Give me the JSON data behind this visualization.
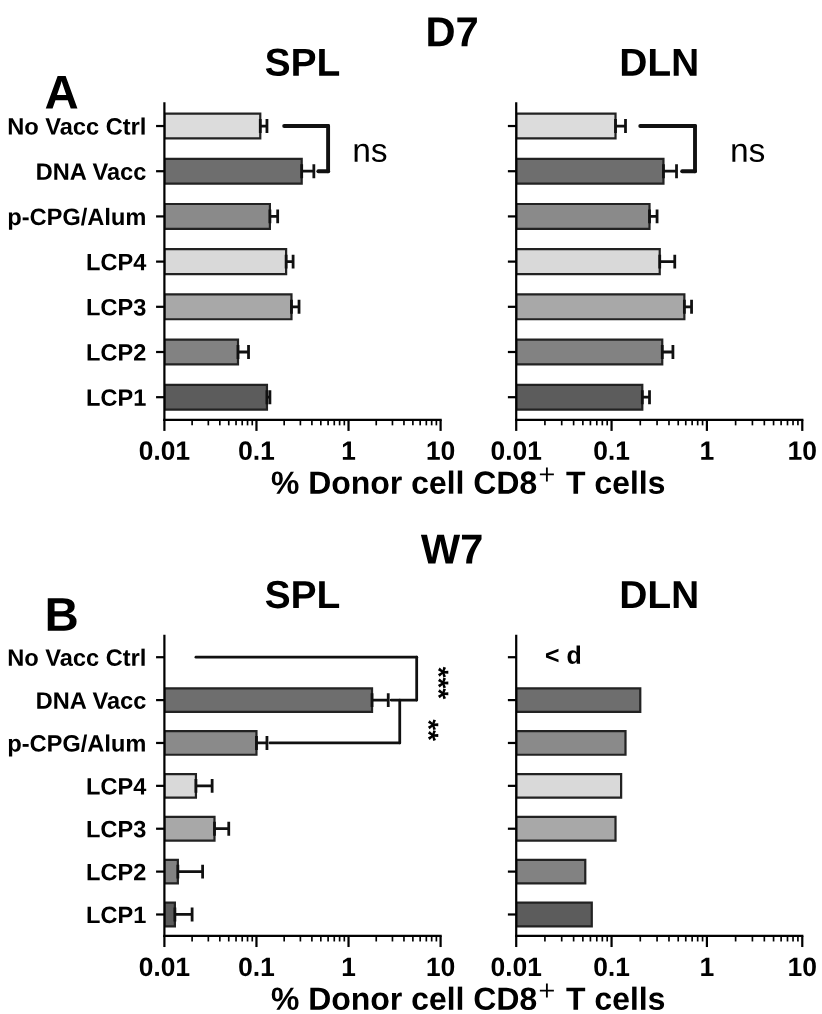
{
  "chart_data": [
    {
      "type": "bar",
      "orientation": "horizontal",
      "title": "SPL",
      "xlabel": "% Donor cell CD8$^{+}$ T cells",
      "log": "x",
      "categories": [
        "No Vacc Ctrl",
        "DNA Vacc",
        "p-CPG/Alum",
        "LCP4",
        "LCP3",
        "LCP2",
        "LCP1"
      ],
      "values": [
        0.11,
        0.31,
        0.14,
        0.21,
        0.24,
        0.063,
        0.13
      ],
      "errors": [
        [
          0.11,
          0.13
        ],
        [
          0.31,
          0.42
        ],
        [
          0.14,
          0.17
        ],
        [
          0.21,
          0.25
        ],
        [
          0.24,
          0.29
        ],
        [
          0.063,
          0.082
        ],
        [
          0.13,
          0.14
        ]
      ],
      "colors": [
        "#dcdcdc",
        "#6e6e6e",
        "#8a8a8a",
        "#d9d9d9",
        "#a8a8a8",
        "#828282",
        "#5c5c5c"
      ],
      "xlim": [
        0.01,
        10
      ],
      "xticks": [
        0.01,
        0.1,
        1,
        10
      ],
      "annotations": [
        "D7",
        "A",
        "ns"
      ]
    },
    {
      "type": "bar",
      "orientation": "horizontal",
      "title": "DLN",
      "log": "x",
      "tick_labels": "x",
      "categories": [
        null,
        null,
        null,
        null,
        null,
        null,
        null
      ],
      "values": [
        0.11,
        0.35,
        0.25,
        0.32,
        0.58,
        0.34,
        0.21
      ],
      "errors": [
        [
          0.11,
          0.14
        ],
        [
          0.35,
          0.48
        ],
        [
          0.25,
          0.3
        ],
        [
          0.32,
          0.46
        ],
        [
          0.58,
          0.69
        ],
        [
          0.34,
          0.44
        ],
        [
          0.21,
          0.25
        ]
      ],
      "colors": [
        "#dcdcdc",
        "#6e6e6e",
        "#8a8a8a",
        "#d9d9d9",
        "#a8a8a8",
        "#828282",
        "#5c5c5c"
      ],
      "xlim": [
        0.01,
        10
      ],
      "xticks": [
        0.01,
        0.1,
        1,
        10
      ],
      "annotations": [
        "ns"
      ]
    },
    {
      "type": "bar",
      "orientation": "horizontal",
      "title": "SPL",
      "xlabel": "% Donor cell CD8$^{+}$ T cells",
      "log": "x",
      "categories": [
        "No Vacc Ctrl",
        "DNA Vacc",
        "p-CPG/Alum",
        "LCP4",
        "LCP3",
        "LCP2",
        "LCP1"
      ],
      "values": [
        null,
        1.8,
        0.1,
        0.022,
        0.035,
        0.014,
        0.013
      ],
      "errors": [
        null,
        [
          1.8,
          2.7
        ],
        [
          0.1,
          0.13
        ],
        [
          0.022,
          0.033
        ],
        [
          0.035,
          0.05
        ],
        [
          0.014,
          0.026
        ],
        [
          0.013,
          0.02
        ]
      ],
      "colors": [
        "#dcdcdc",
        "#6e6e6e",
        "#8a8a8a",
        "#d9d9d9",
        "#a8a8a8",
        "#828282",
        "#5c5c5c"
      ],
      "xlim": [
        0.01,
        10
      ],
      "xticks": [
        0.01,
        0.1,
        1,
        10
      ],
      "annotations": [
        "W7",
        "B",
        "***",
        "**"
      ]
    },
    {
      "type": "bar",
      "orientation": "horizontal",
      "title": "DLN",
      "log": "x",
      "tick_labels": "x",
      "categories": [
        null,
        null,
        null,
        null,
        null,
        null,
        null
      ],
      "values": [
        null,
        0.2,
        0.14,
        0.126,
        0.11,
        0.053,
        0.062
      ],
      "colors": [
        "#dcdcdc",
        "#6e6e6e",
        "#8a8a8a",
        "#d9d9d9",
        "#a8a8a8",
        "#828282",
        "#5c5c5c"
      ],
      "xlim": [
        0.01,
        10
      ],
      "xticks": [
        0.01,
        0.1,
        1,
        10
      ],
      "annotations": [
        "< d"
      ]
    }
  ]
}
